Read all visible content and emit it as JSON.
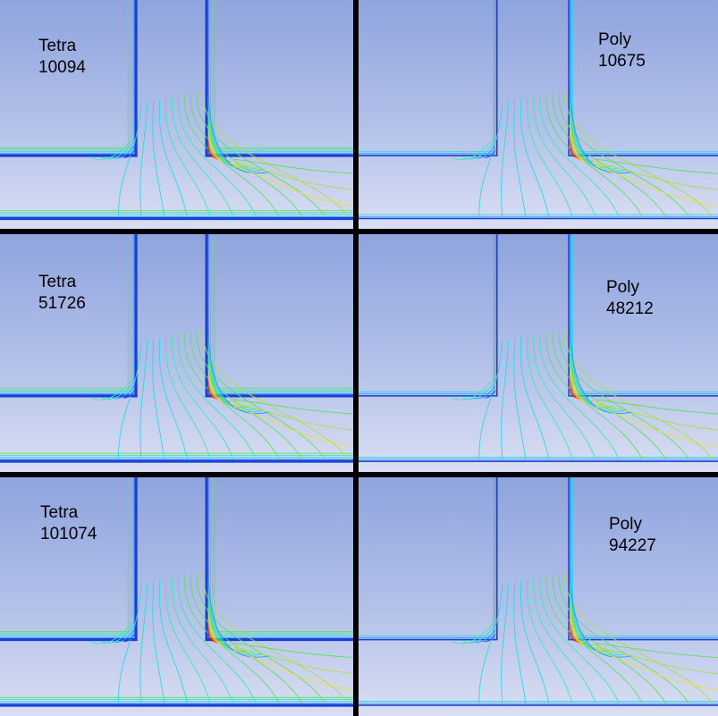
{
  "panels": [
    {
      "mesh": "Tetra",
      "cells": "10094"
    },
    {
      "mesh": "Poly",
      "cells": "10675"
    },
    {
      "mesh": "Tetra",
      "cells": "51726"
    },
    {
      "mesh": "Poly",
      "cells": "48212"
    },
    {
      "mesh": "Tetra",
      "cells": "101074"
    },
    {
      "mesh": "Poly",
      "cells": "94227"
    }
  ],
  "colors": {
    "background_top": "#8fa4de",
    "background_bottom": "#d9def2",
    "wall": "#1a3fd6",
    "contour_scale": [
      "#1f4fe0",
      "#1fa0ff",
      "#2bd8e8",
      "#3de8b0",
      "#5de060",
      "#a8e040",
      "#f0e030",
      "#f8a020",
      "#f05010",
      "#c81010"
    ]
  }
}
